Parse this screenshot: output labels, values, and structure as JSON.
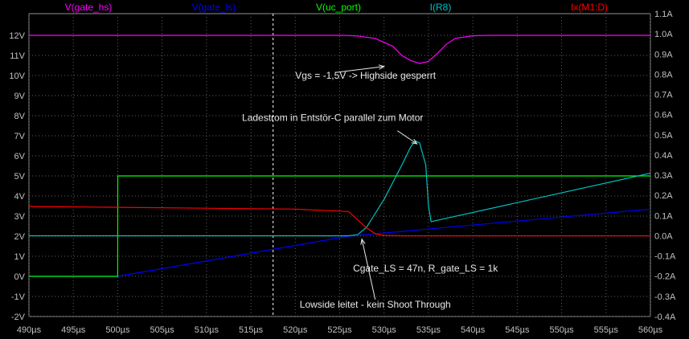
{
  "chart_data": {
    "type": "line",
    "title": "",
    "xlabel": "",
    "ylabel": "",
    "grid": true,
    "legend_position": "top",
    "xlim": [
      490,
      560
    ],
    "ylim_left": [
      -2,
      12
    ],
    "ylim_right": [
      -0.4,
      1.1
    ],
    "x_ticks": [
      "490µs",
      "495µs",
      "500µs",
      "505µs",
      "510µs",
      "515µs",
      "520µs",
      "525µs",
      "530µs",
      "535µs",
      "540µs",
      "545µs",
      "550µs",
      "555µs",
      "560µs"
    ],
    "y_ticks_left": [
      "12V",
      "11V",
      "10V",
      "9V",
      "8V",
      "7V",
      "6V",
      "5V",
      "4V",
      "3V",
      "2V",
      "1V",
      "0V",
      "-1V",
      "-2V"
    ],
    "y_ticks_right": [
      "1.1A",
      "1.0A",
      "0.9A",
      "0.8A",
      "0.7A",
      "0.6A",
      "0.5A",
      "0.4A",
      "0.3A",
      "0.2A",
      "0.1A",
      "0.0A",
      "-0.1A",
      "-0.2A",
      "-0.3A",
      "-0.4A"
    ],
    "cursor_x": 517.5,
    "series": [
      {
        "name": "V(gate_hs)",
        "color": "#ff00ff",
        "axis": "left",
        "x": [
          490,
          525.5,
          527,
          529,
          531,
          532,
          533,
          534,
          535,
          536,
          537,
          538,
          540,
          542,
          560
        ],
        "y": [
          12,
          12,
          11.97,
          11.85,
          11.45,
          11.0,
          10.75,
          10.6,
          10.7,
          11.1,
          11.55,
          11.85,
          11.98,
          12,
          12
        ]
      },
      {
        "name": "V(gate_ls)",
        "color": "#0000ff",
        "axis": "left",
        "x": [
          490,
          500,
          500.01,
          526,
          560
        ],
        "y": [
          0,
          0,
          0,
          2.0,
          3.35
        ]
      },
      {
        "name": "V(uc_port)",
        "color": "#00ff00",
        "axis": "left",
        "x": [
          490,
          500,
          500.01,
          560
        ],
        "y": [
          0,
          0,
          5,
          5
        ]
      },
      {
        "name": "I(R8)",
        "color": "#00c0c0",
        "axis": "right",
        "x": [
          490,
          526,
          527,
          528,
          530,
          532,
          533,
          533.5,
          534,
          534.7,
          535,
          535.3,
          560
        ],
        "y": [
          0,
          0,
          0.005,
          0.04,
          0.18,
          0.35,
          0.44,
          0.47,
          0.46,
          0.35,
          0.15,
          0.07,
          0.31
        ]
      },
      {
        "name": "Ix(M1:D)",
        "color": "#ff0000",
        "axis": "right",
        "x": [
          490,
          520,
          526,
          527,
          528,
          529,
          530,
          532,
          560
        ],
        "y": [
          0.145,
          0.132,
          0.12,
          0.08,
          0.04,
          0.01,
          0.002,
          0,
          0
        ]
      }
    ],
    "annotations": [
      {
        "text": "Vgs = -1,5V -> Highside gesperrt",
        "x": 520,
        "y": 9.85,
        "arrow_to": [
          530,
          10.45
        ],
        "arrow_from": [
          524.5,
          10.15
        ]
      },
      {
        "text": "Ladestrom in Entstör-C parallel zum Motor",
        "x": 514,
        "y": 7.75,
        "arrow_to": [
          533.7,
          6.6
        ],
        "arrow_from": [
          531.5,
          7.25
        ]
      },
      {
        "text": "Cgate_LS = 47n, R_gate_LS = 1k",
        "x": 526.5,
        "y": 0.25
      },
      {
        "text": "Lowside leitet - kein Shoot Through",
        "x": 520.5,
        "y": -1.55,
        "arrow_to": [
          527.5,
          1.85
        ],
        "arrow_from": [
          529,
          -1.15
        ]
      }
    ]
  }
}
